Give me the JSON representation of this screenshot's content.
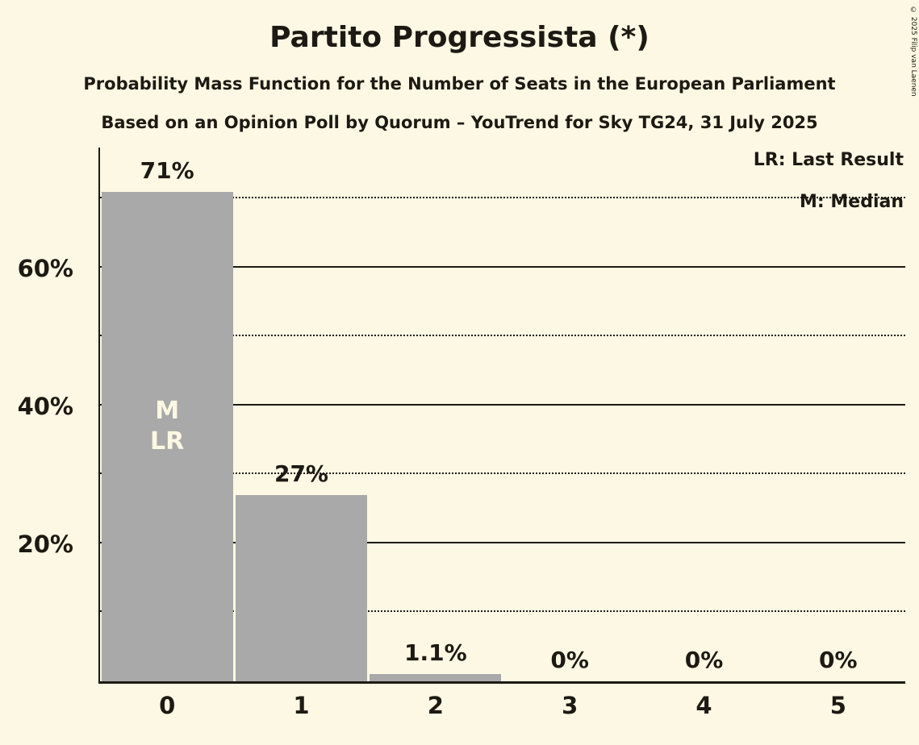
{
  "title": "Partito Progressista (*)",
  "subtitle1": "Probability Mass Function for the Number of Seats in the European Parliament",
  "subtitle2": "Based on an Opinion Poll by Quorum – YouTrend for Sky TG24, 31 July 2025",
  "legend": {
    "lr": "LR: Last Result",
    "m": "M: Median"
  },
  "copyright": "© 2025 Filip van Laenen",
  "colors": {
    "background": "#FCF8E3",
    "bar": "#A9A9A9",
    "text": "#1C1A12",
    "bar_inner_label": "#FCF8E3"
  },
  "chart_data": {
    "type": "bar",
    "categories": [
      "0",
      "1",
      "2",
      "3",
      "4",
      "5"
    ],
    "values": [
      71,
      27,
      1.1,
      0,
      0,
      0
    ],
    "value_labels": [
      "71%",
      "27%",
      "1.1%",
      "0%",
      "0%",
      "0%"
    ],
    "title": "Partito Progressista (*)",
    "xlabel": "",
    "ylabel": "",
    "ylim": [
      0,
      77.4
    ],
    "yticks": [
      20,
      40,
      60
    ],
    "ytick_labels": [
      "20%",
      "40%",
      "60%"
    ],
    "solid_gridlines": [
      20,
      40,
      60
    ],
    "dotted_gridlines": [
      10,
      30,
      50,
      70
    ],
    "grid": true,
    "legend_position": "top-right",
    "bar_inner_labels": [
      [
        "M",
        "LR"
      ],
      [],
      [],
      [],
      [],
      []
    ]
  }
}
